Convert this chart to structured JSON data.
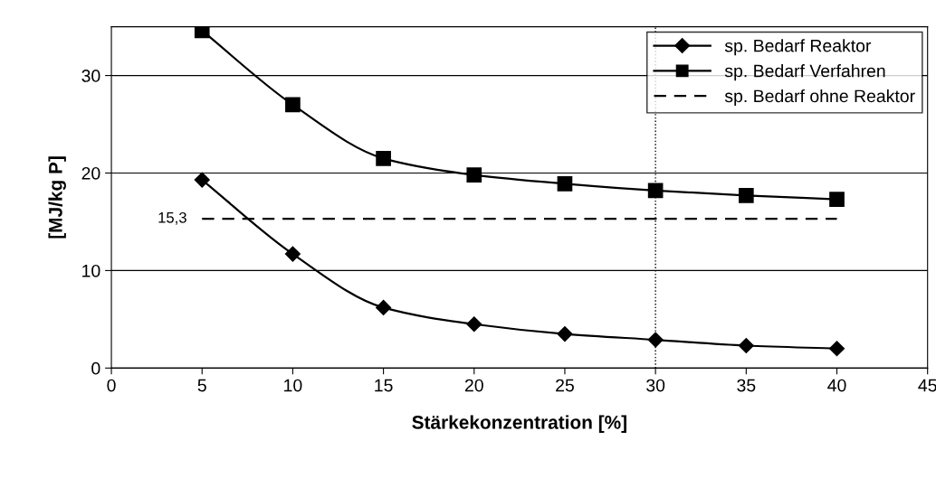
{
  "chart_data": {
    "type": "line",
    "xlabel": "Stärkekonzentration [%]",
    "ylabel": "[MJ/kg P]",
    "x": [
      5,
      10,
      15,
      20,
      25,
      30,
      35,
      40
    ],
    "series": [
      {
        "name": "sp. Bedarf Reaktor",
        "color": "#000000",
        "marker": "diamond",
        "line_style": "solid",
        "values": [
          19.3,
          11.7,
          6.2,
          4.5,
          3.5,
          2.9,
          2.3,
          2.0
        ]
      },
      {
        "name": "sp. Bedarf Verfahren",
        "color": "#000000",
        "marker": "square",
        "line_style": "solid",
        "values": [
          34.6,
          27.0,
          21.5,
          19.8,
          18.9,
          18.2,
          17.7,
          17.3
        ]
      },
      {
        "name": "sp. Bedarf ohne Reaktor",
        "color": "#000000",
        "marker": "none",
        "line_style": "dashed",
        "values": [
          15.3,
          15.3,
          15.3,
          15.3,
          15.3,
          15.3,
          15.3,
          15.3
        ]
      }
    ],
    "annotations": [
      {
        "text": "15,3",
        "x": 5,
        "y": 15.3
      }
    ],
    "ref_lines": [
      {
        "axis": "x",
        "value": 30,
        "color": "#000000",
        "line_style": "dotted"
      }
    ],
    "xlim": [
      0,
      45
    ],
    "xticks": [
      0,
      5,
      10,
      15,
      20,
      25,
      30,
      35,
      40,
      45
    ],
    "ylim": [
      0,
      35
    ],
    "yticks": [
      0,
      10,
      20,
      30
    ],
    "grid": "y",
    "legend": "top right"
  }
}
